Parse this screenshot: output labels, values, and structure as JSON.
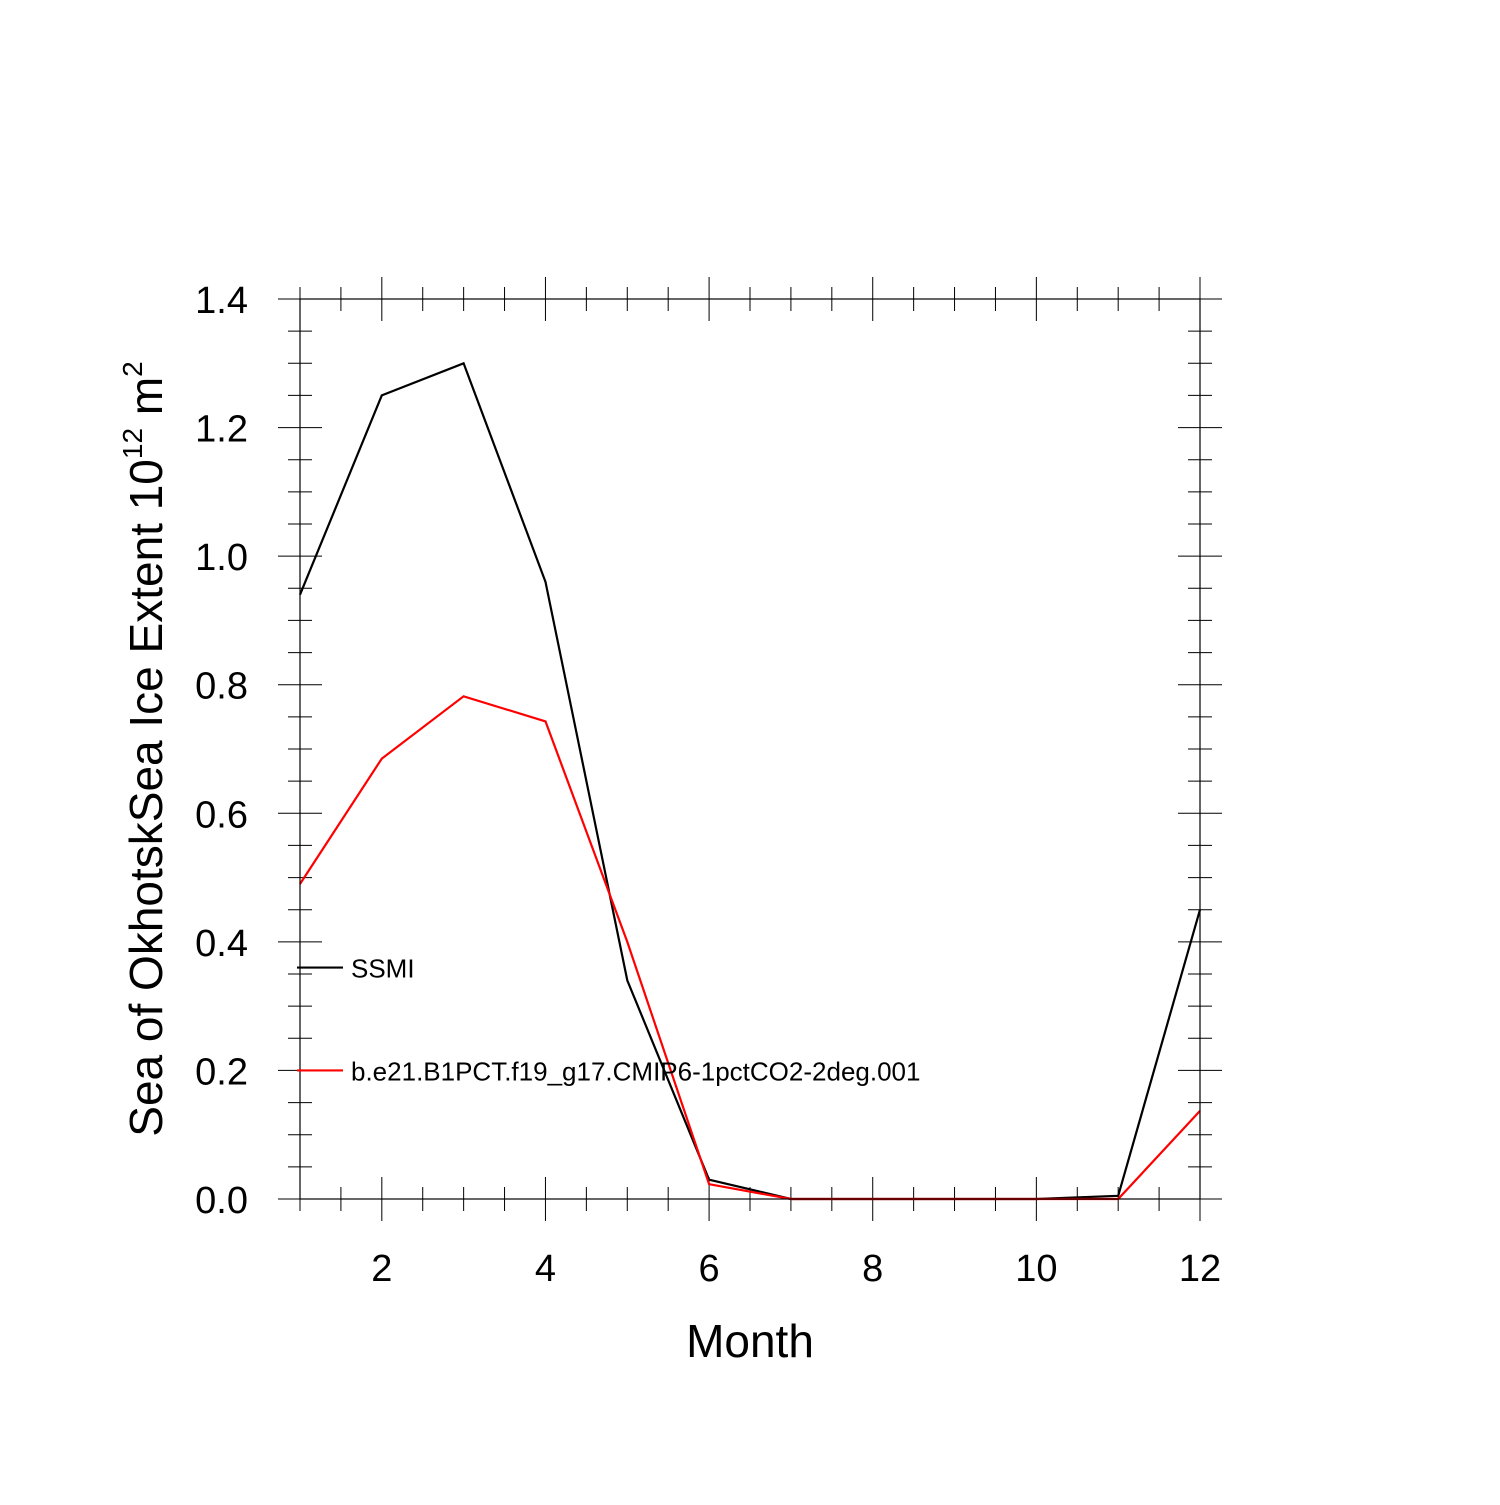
{
  "chart_data": {
    "type": "line",
    "xlabel": "Month",
    "ylabel": {
      "main": "Sea of OkhotskSea Ice Extent 10",
      "exponent": "12",
      "unit_base": " m",
      "unit_exponent": "2"
    },
    "xlim": [
      1,
      12
    ],
    "ylim": [
      0,
      1.4
    ],
    "x_major_ticks": [
      2,
      4,
      6,
      8,
      10,
      12
    ],
    "x_tick_labels": [
      "2",
      "4",
      "6",
      "8",
      "10",
      "12"
    ],
    "y_major_ticks": [
      0.0,
      0.2,
      0.4,
      0.6,
      0.8,
      1.0,
      1.2,
      1.4
    ],
    "y_tick_labels": [
      "0.0",
      "0.2",
      "0.4",
      "0.6",
      "0.8",
      "1.0",
      "1.2",
      "1.4"
    ],
    "x": [
      1,
      2,
      3,
      4,
      5,
      6,
      7,
      8,
      9,
      10,
      11,
      12
    ],
    "series": [
      {
        "name": "SSMI",
        "color": "#000000",
        "values": [
          0.94,
          1.25,
          1.3,
          0.96,
          0.34,
          0.03,
          0.0,
          0.0,
          0.0,
          0.0,
          0.005,
          0.45
        ]
      },
      {
        "name": "b.e21.B1PCT.f19_g17.CMIP6-1pctCO2-2deg.001",
        "color": "#ff0000",
        "values": [
          0.49,
          0.685,
          0.782,
          0.743,
          0.4,
          0.023,
          0.0,
          0.0,
          0.0,
          0.0,
          0.0,
          0.137
        ]
      }
    ],
    "legend": {
      "placement": "inside-left",
      "entries_at_y": [
        0.36,
        0.2
      ]
    },
    "grid": false
  }
}
